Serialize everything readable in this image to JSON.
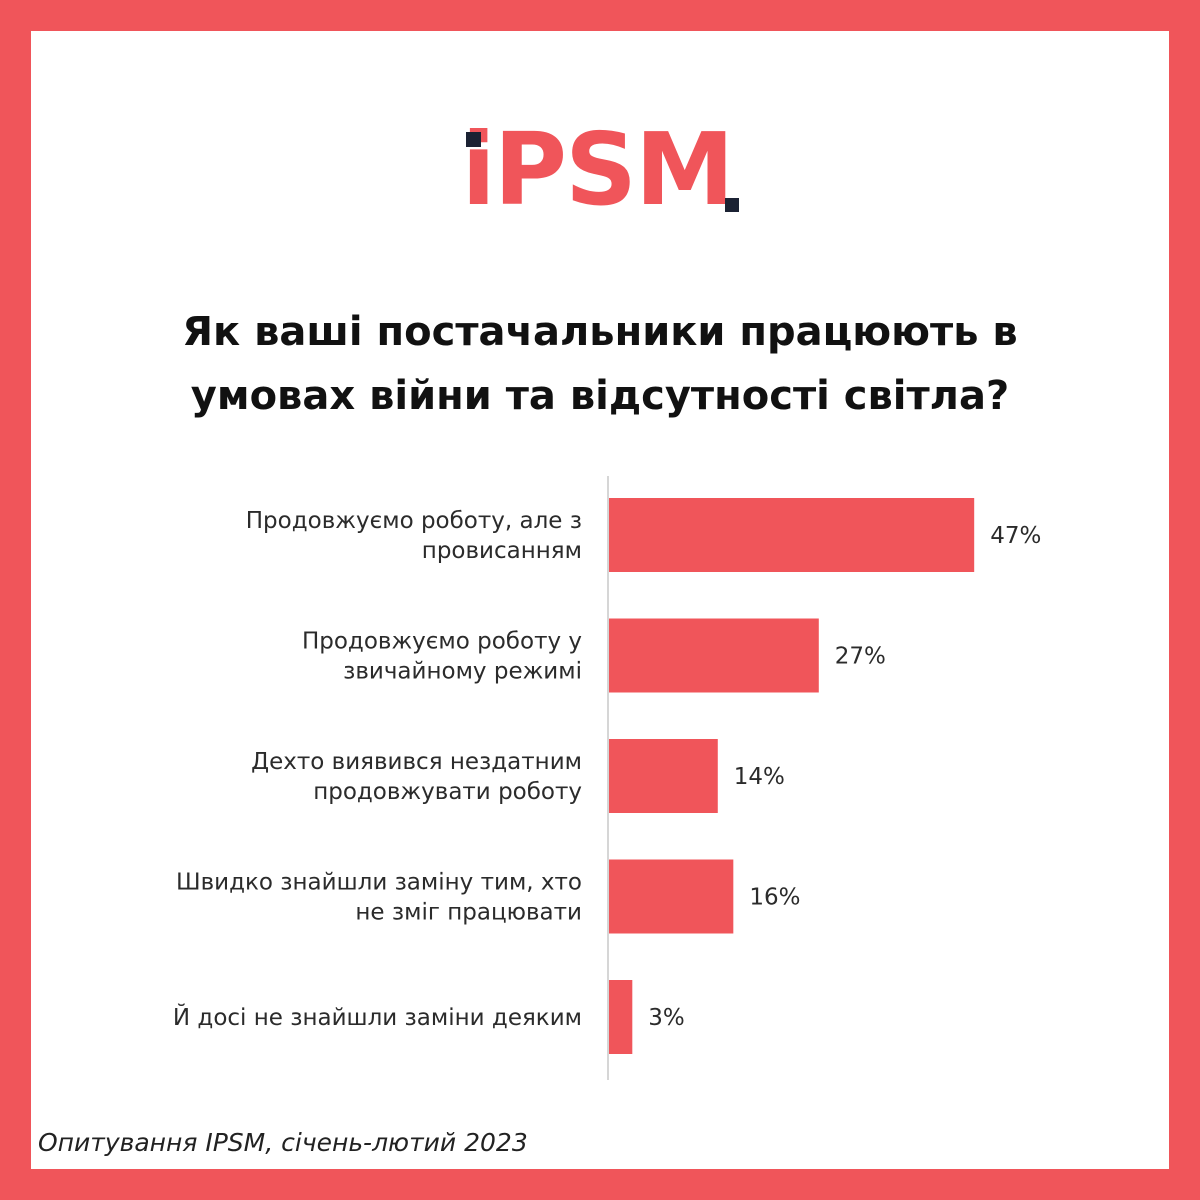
{
  "logo": {
    "text_i": "i",
    "text_rest": "PSM"
  },
  "title_lines": [
    "Як ваші постачальники працюють в",
    "умовах війни та відсутності світла?"
  ],
  "source": "Опитування IPSM, січень-лютий 2023",
  "colors": {
    "accent": "#f0555a",
    "dark": "#1b2233",
    "axis": "#d6d6d6"
  },
  "chart_data": {
    "type": "bar",
    "orientation": "horizontal",
    "categories": [
      [
        "Продовжуємо роботу, але з",
        "провисанням"
      ],
      [
        "Продовжуємо роботу у",
        "звичайному режимі"
      ],
      [
        "Дехто виявився нездатним",
        "продовжувати роботу"
      ],
      [
        "Швидко знайшли заміну тим, хто",
        "не зміг працювати"
      ],
      [
        "Й досі не знайшли заміни деяким"
      ]
    ],
    "values": [
      47,
      27,
      14,
      16,
      3
    ],
    "value_labels": [
      "47%",
      "27%",
      "14%",
      "16%",
      "3%"
    ],
    "xlim": [
      0,
      47
    ],
    "grid": false
  }
}
